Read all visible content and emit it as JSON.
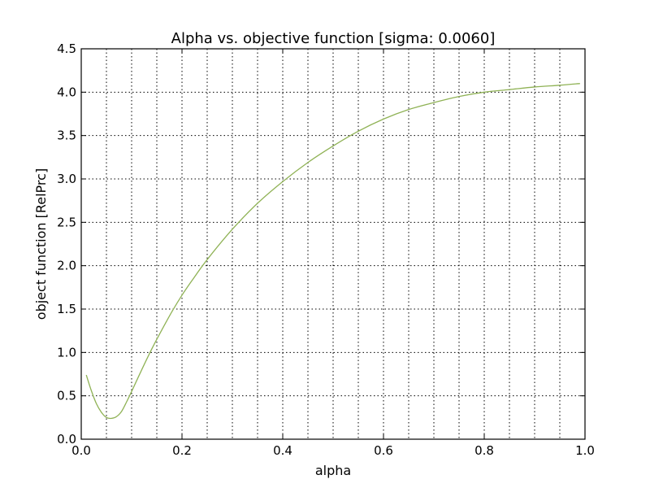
{
  "chart_data": {
    "type": "line",
    "title": "Alpha vs. objective function [sigma: 0.0060]",
    "xlabel": "alpha",
    "ylabel": "object function [RelPrc]",
    "xlim": [
      0.0,
      1.0
    ],
    "ylim": [
      0.0,
      4.5
    ],
    "xticks": [
      "0.0",
      "0.2",
      "0.4",
      "0.6",
      "0.8",
      "1.0"
    ],
    "yticks": [
      "0.0",
      "0.5",
      "1.0",
      "1.5",
      "2.0",
      "2.5",
      "3.0",
      "3.5",
      "4.0",
      "4.5"
    ],
    "x_minor_grid_step": 0.05,
    "grid": true,
    "series": [
      {
        "color": "#8fb255",
        "x": [
          0.01,
          0.02,
          0.03,
          0.04,
          0.05,
          0.06,
          0.07,
          0.08,
          0.09,
          0.1,
          0.12,
          0.14,
          0.16,
          0.18,
          0.2,
          0.22,
          0.25,
          0.3,
          0.35,
          0.4,
          0.45,
          0.5,
          0.55,
          0.6,
          0.65,
          0.7,
          0.75,
          0.8,
          0.85,
          0.9,
          0.95,
          0.99
        ],
        "y": [
          0.74,
          0.56,
          0.41,
          0.31,
          0.25,
          0.24,
          0.26,
          0.32,
          0.43,
          0.55,
          0.8,
          1.04,
          1.26,
          1.47,
          1.66,
          1.83,
          2.07,
          2.42,
          2.72,
          2.97,
          3.19,
          3.38,
          3.55,
          3.69,
          3.8,
          3.88,
          3.95,
          4.0,
          4.03,
          4.06,
          4.08,
          4.1
        ]
      }
    ]
  }
}
